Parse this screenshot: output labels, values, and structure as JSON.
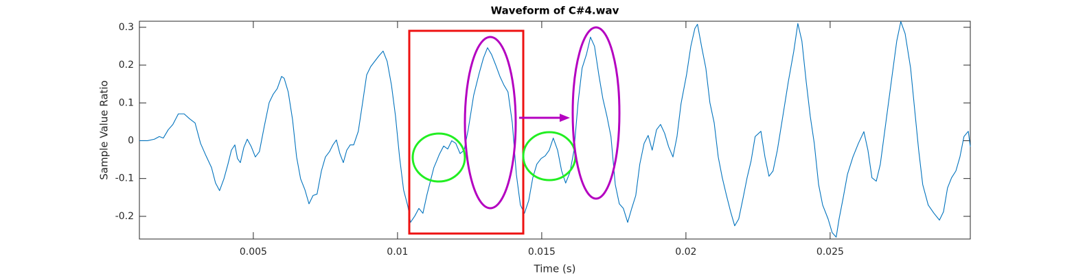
{
  "chart_data": {
    "type": "line",
    "title": "Waveform of C#4.wav",
    "x_label": "Time (s)",
    "y_label": "Sample Value Ratio",
    "color": "#0072bd",
    "x": [
      0.00105,
      0.00133,
      0.00157,
      0.00174,
      0.00188,
      0.00205,
      0.00221,
      0.0024,
      0.0026,
      0.00279,
      0.00298,
      0.00317,
      0.00336,
      0.00355,
      0.00369,
      0.00383,
      0.00398,
      0.00412,
      0.00424,
      0.00436,
      0.00445,
      0.00455,
      0.00467,
      0.00479,
      0.00493,
      0.00507,
      0.00521,
      0.00538,
      0.00555,
      0.00569,
      0.00583,
      0.00598,
      0.00607,
      0.00621,
      0.00636,
      0.0065,
      0.00664,
      0.00679,
      0.00693,
      0.00707,
      0.00721,
      0.00736,
      0.0075,
      0.00764,
      0.00776,
      0.00788,
      0.008,
      0.00812,
      0.00824,
      0.00836,
      0.00848,
      0.00864,
      0.00879,
      0.00893,
      0.00907,
      0.00921,
      0.00936,
      0.0095,
      0.00964,
      0.00979,
      0.00993,
      0.01007,
      0.01021,
      0.01036,
      0.01045,
      0.0106,
      0.01074,
      0.01088,
      0.01102,
      0.01117,
      0.01126,
      0.01136,
      0.01145,
      0.0116,
      0.01174,
      0.01188,
      0.01202,
      0.01217,
      0.01231,
      0.01245,
      0.01264,
      0.01283,
      0.01298,
      0.01312,
      0.01326,
      0.0134,
      0.01355,
      0.01369,
      0.01383,
      0.01398,
      0.01412,
      0.01426,
      0.0144,
      0.01455,
      0.01469,
      0.01483,
      0.01498,
      0.01512,
      0.01526,
      0.0154,
      0.01555,
      0.01569,
      0.01583,
      0.01598,
      0.01612,
      0.01626,
      0.0164,
      0.01655,
      0.01669,
      0.01683,
      0.01698,
      0.01712,
      0.01726,
      0.0174,
      0.01755,
      0.01769,
      0.01783,
      0.01798,
      0.01812,
      0.01826,
      0.0184,
      0.01855,
      0.01869,
      0.01883,
      0.01898,
      0.01912,
      0.01926,
      0.0194,
      0.01955,
      0.01969,
      0.01983,
      0.02002,
      0.02017,
      0.02031,
      0.0204,
      0.02055,
      0.02069,
      0.02083,
      0.02098,
      0.02112,
      0.02126,
      0.0214,
      0.02155,
      0.02169,
      0.02183,
      0.02198,
      0.02212,
      0.02226,
      0.0224,
      0.0226,
      0.02274,
      0.02288,
      0.02302,
      0.02317,
      0.02336,
      0.02355,
      0.02374,
      0.02388,
      0.02402,
      0.02417,
      0.02431,
      0.02445,
      0.0246,
      0.02474,
      0.02493,
      0.02507,
      0.02521,
      0.02531,
      0.02545,
      0.0256,
      0.02579,
      0.02598,
      0.02617,
      0.02631,
      0.02645,
      0.0266,
      0.02674,
      0.02693,
      0.02712,
      0.02731,
      0.02745,
      0.0276,
      0.02779,
      0.02793,
      0.02807,
      0.02821,
      0.0284,
      0.0286,
      0.02879,
      0.02893,
      0.02907,
      0.02921,
      0.02936,
      0.0295,
      0.02964,
      0.02979,
      0.02986
    ],
    "values": [
      0,
      0,
      0.004,
      0.011,
      0.007,
      0.029,
      0.043,
      0.071,
      0.071,
      0.058,
      0.047,
      -0.007,
      -0.04,
      -0.071,
      -0.112,
      -0.132,
      -0.101,
      -0.062,
      -0.025,
      -0.011,
      -0.047,
      -0.058,
      -0.018,
      0.004,
      -0.016,
      -0.043,
      -0.029,
      0.038,
      0.101,
      0.123,
      0.138,
      0.17,
      0.165,
      0.129,
      0.056,
      -0.043,
      -0.101,
      -0.13,
      -0.167,
      -0.145,
      -0.141,
      -0.08,
      -0.043,
      -0.029,
      -0.011,
      0.002,
      -0.034,
      -0.058,
      -0.025,
      -0.011,
      -0.011,
      0.025,
      0.101,
      0.174,
      0.196,
      0.21,
      0.225,
      0.237,
      0.21,
      0.147,
      0.065,
      -0.043,
      -0.13,
      -0.174,
      -0.216,
      -0.199,
      -0.179,
      -0.192,
      -0.143,
      -0.098,
      -0.071,
      -0.053,
      -0.036,
      -0.014,
      -0.022,
      0,
      -0.007,
      -0.034,
      -0.025,
      0.029,
      0.12,
      0.178,
      0.219,
      0.246,
      0.228,
      0.201,
      0.17,
      0.147,
      0.129,
      0.047,
      -0.089,
      -0.17,
      -0.192,
      -0.158,
      -0.098,
      -0.062,
      -0.047,
      -0.04,
      -0.025,
      0.007,
      -0.025,
      -0.08,
      -0.112,
      -0.083,
      -0.025,
      0.101,
      0.192,
      0.228,
      0.274,
      0.25,
      0.174,
      0.111,
      0.065,
      0.011,
      -0.116,
      -0.167,
      -0.179,
      -0.216,
      -0.179,
      -0.145,
      -0.062,
      -0.007,
      0.014,
      -0.025,
      0.029,
      0.043,
      0.02,
      -0.016,
      -0.043,
      0.011,
      0.098,
      0.174,
      0.25,
      0.297,
      0.308,
      0.246,
      0.192,
      0.101,
      0.047,
      -0.043,
      -0.098,
      -0.143,
      -0.188,
      -0.225,
      -0.207,
      -0.152,
      -0.098,
      -0.053,
      0.011,
      0.025,
      -0.043,
      -0.094,
      -0.08,
      -0.025,
      0.065,
      0.156,
      0.237,
      0.31,
      0.264,
      0.156,
      0.065,
      -0.007,
      -0.116,
      -0.17,
      -0.207,
      -0.243,
      -0.255,
      -0.207,
      -0.152,
      -0.089,
      -0.043,
      -0.007,
      0.024,
      -0.025,
      -0.098,
      -0.107,
      -0.062,
      0.047,
      0.156,
      0.264,
      0.315,
      0.283,
      0.192,
      0.083,
      -0.025,
      -0.116,
      -0.17,
      -0.192,
      -0.21,
      -0.188,
      -0.125,
      -0.098,
      -0.08,
      -0.043,
      0.011,
      0.025,
      -0.016
    ],
    "xlim": [
      0.00105,
      0.02986
    ],
    "xticks": [
      0.005,
      0.01,
      0.015,
      0.02,
      0.025
    ],
    "ylim": [
      -0.26,
      0.316
    ],
    "yticks": [
      -0.2,
      -0.1,
      0,
      0.1,
      0.2,
      0.3
    ]
  }
}
